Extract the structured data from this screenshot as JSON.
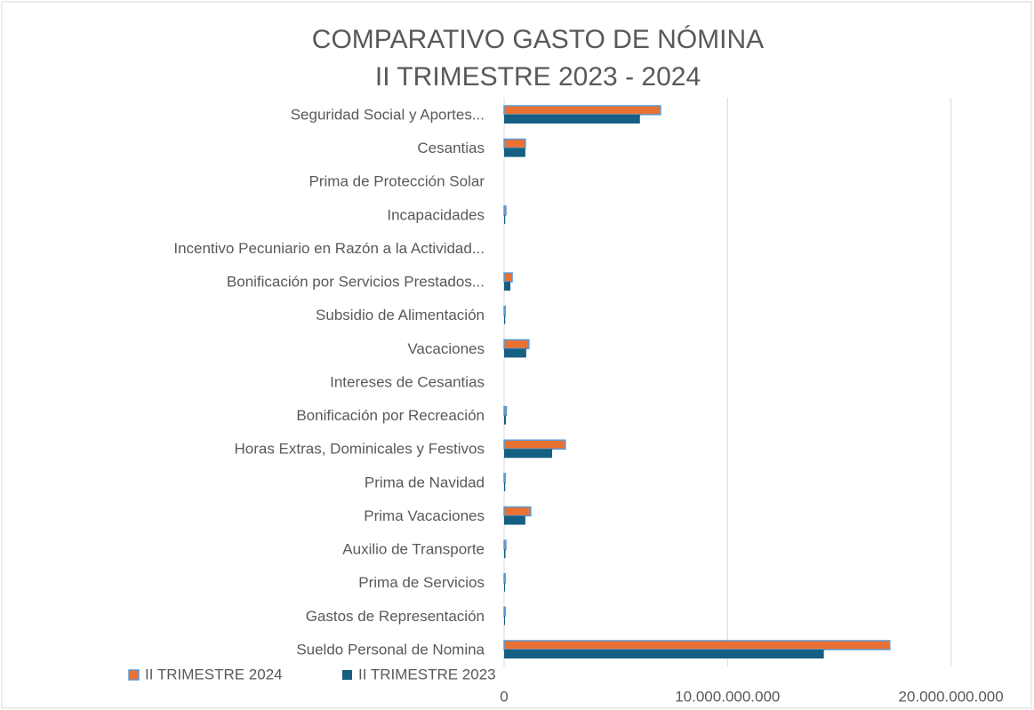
{
  "chart_data": {
    "type": "hbar",
    "title": [
      "COMPARATIVO GASTO DE NÓMINA",
      "II TRIMESTRE 2023 - 2024"
    ],
    "categories": [
      "Seguridad Social y Aportes...",
      "Cesantias",
      "Prima de Protección Solar",
      "Incapacidades",
      "Incentivo Pecuniario en Razón a la Actividad...",
      "Bonificación por Servicios Prestados...",
      "Subsidio de Alimentación",
      "Vacaciones",
      "Intereses de Cesantias",
      "Bonificación por Recreación",
      "Horas Extras, Dominicales y Festivos",
      "Prima de Navidad",
      "Prima Vacaciones",
      "Auxilio de Transporte",
      "Prima de Servicios",
      "Gastos de Representación",
      "Sueldo Personal de Nomina"
    ],
    "series": [
      {
        "name": "II TRIMESTRE 2024",
        "color": "#e97132",
        "border": "#5b9bd5",
        "values": [
          7000000000,
          950000000,
          0,
          80000000,
          0,
          360000000,
          50000000,
          1110000000,
          0,
          100000000,
          2740000000,
          50000000,
          1190000000,
          80000000,
          50000000,
          50000000,
          17260000000
        ]
      },
      {
        "name": "II TRIMESTRE 2023",
        "color": "#156082",
        "values": [
          6080000000,
          950000000,
          0,
          50000000,
          0,
          280000000,
          50000000,
          990000000,
          0,
          80000000,
          2150000000,
          50000000,
          950000000,
          60000000,
          40000000,
          40000000,
          14310000000
        ]
      }
    ],
    "xlim": [
      0,
      22800000000
    ],
    "xticks": [
      0,
      {
        "value": 10000000000,
        "label": "10.000.000.000"
      },
      {
        "value": 20000000000,
        "label": "20.000.000.000"
      }
    ],
    "grid": true
  }
}
